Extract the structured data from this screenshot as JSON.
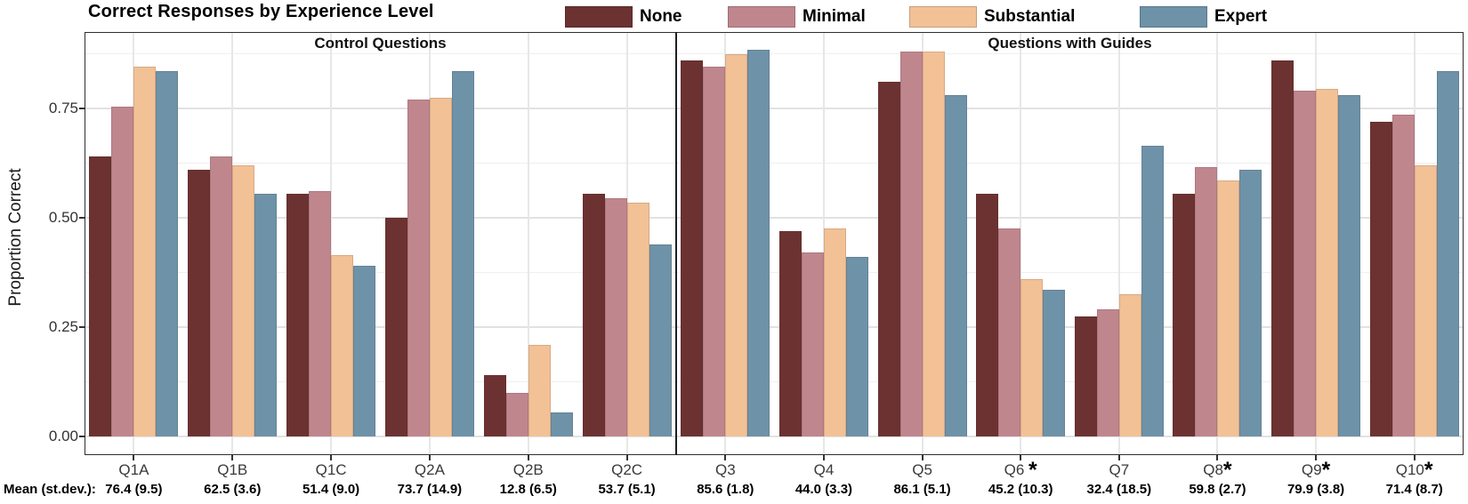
{
  "chart_data": {
    "type": "bar",
    "title": "Correct Responses by Experience Level",
    "ylabel": "Proportion Correct",
    "ylim": [
      0,
      0.925
    ],
    "ytick_labels": [
      "0.00",
      "0.25",
      "0.50",
      "0.75"
    ],
    "ytick_values": [
      0,
      0.25,
      0.5,
      0.75
    ],
    "grid": "horizontal major at 0.25 steps, minor at 0.125 steps, vertical at category centers",
    "legend_position": "top",
    "legend": [
      {
        "name": "None",
        "color": "#6c3231"
      },
      {
        "name": "Minimal",
        "color": "#c0868e"
      },
      {
        "name": "Substantial",
        "color": "#f2c196"
      },
      {
        "name": "Expert",
        "color": "#6e92a8"
      }
    ],
    "mean_row_label": "Mean (st.dev.):",
    "panels": [
      {
        "title": "Control Questions",
        "categories": [
          {
            "label": "Q1A",
            "mean": "76.4 (9.5)",
            "values": [
              0.64,
              0.755,
              0.845,
              0.835
            ]
          },
          {
            "label": "Q1B",
            "mean": "62.5 (3.6)",
            "values": [
              0.61,
              0.64,
              0.62,
              0.555
            ]
          },
          {
            "label": "Q1C",
            "mean": "51.4 (9.0)",
            "values": [
              0.555,
              0.56,
              0.415,
              0.39
            ]
          },
          {
            "label": "Q2A",
            "mean": "73.7 (14.9)",
            "values": [
              0.5,
              0.77,
              0.775,
              0.835
            ]
          },
          {
            "label": "Q2B",
            "mean": "12.8 (6.5)",
            "values": [
              0.14,
              0.1,
              0.21,
              0.055
            ]
          },
          {
            "label": "Q2C",
            "mean": "53.7 (5.1)",
            "values": [
              0.555,
              0.545,
              0.535,
              0.44
            ]
          }
        ]
      },
      {
        "title": "Questions with Guides",
        "categories": [
          {
            "label": "Q3",
            "mean": "85.6 (1.8)",
            "values": [
              0.86,
              0.845,
              0.875,
              0.885
            ]
          },
          {
            "label": "Q4",
            "mean": "44.0 (3.3)",
            "values": [
              0.47,
              0.42,
              0.475,
              0.41
            ]
          },
          {
            "label": "Q5",
            "mean": "86.1 (5.1)",
            "values": [
              0.81,
              0.88,
              0.88,
              0.78
            ]
          },
          {
            "label": "Q6 *",
            "mean": "45.2 (10.3)",
            "values": [
              0.555,
              0.475,
              0.36,
              0.335
            ]
          },
          {
            "label": "Q7",
            "mean": "32.4 (18.5)",
            "values": [
              0.275,
              0.29,
              0.325,
              0.665
            ]
          },
          {
            "label": "Q8*",
            "mean": "59.8 (2.7)",
            "values": [
              0.555,
              0.615,
              0.585,
              0.61
            ]
          },
          {
            "label": "Q9*",
            "mean": "79.9 (3.8)",
            "values": [
              0.86,
              0.79,
              0.795,
              0.78
            ]
          },
          {
            "label": "Q10*",
            "mean": "71.4 (8.7)",
            "values": [
              0.72,
              0.735,
              0.62,
              0.835
            ]
          }
        ]
      }
    ]
  }
}
